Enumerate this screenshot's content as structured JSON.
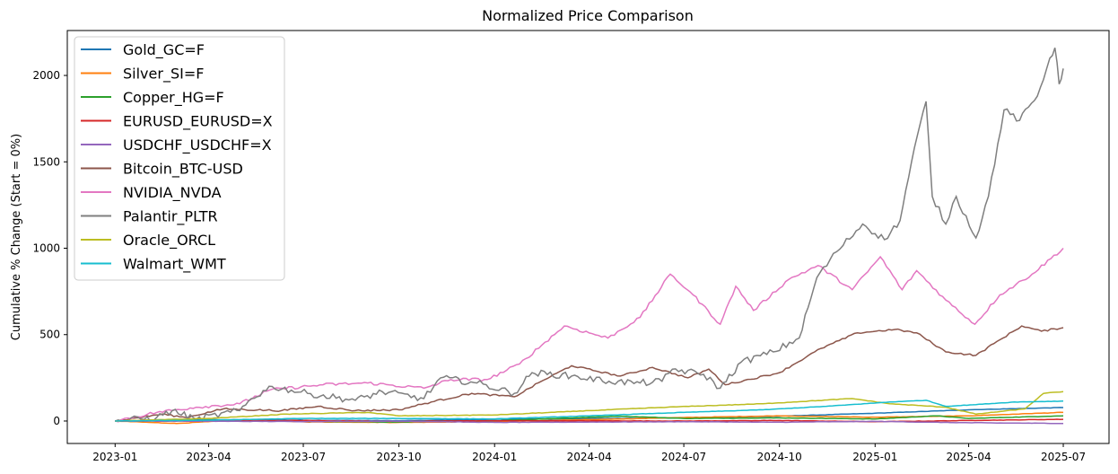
{
  "chart_data": {
    "type": "line",
    "title": "Normalized Price Comparison",
    "xlabel": "",
    "ylabel": "Cumulative % Change (Start = 0%)",
    "xlim": [
      "2022-11-16",
      "2025-08-14"
    ],
    "ylim": [
      -130,
      2260
    ],
    "x_ticks": [
      "2023-01",
      "2023-04",
      "2023-07",
      "2023-10",
      "2024-01",
      "2024-04",
      "2024-07",
      "2024-10",
      "2025-01",
      "2025-04",
      "2025-07"
    ],
    "y_ticks": [
      0,
      500,
      1000,
      1500,
      2000
    ],
    "grid": false,
    "legend_position": "upper-left",
    "series": [
      {
        "name": "Gold_GC=F",
        "color": "#1f77b4",
        "points": [
          [
            "2023-01-01",
            0
          ],
          [
            "2023-04-01",
            8
          ],
          [
            "2023-07-01",
            5
          ],
          [
            "2023-10-01",
            2
          ],
          [
            "2024-01-01",
            10
          ],
          [
            "2024-04-01",
            14
          ],
          [
            "2024-07-01",
            18
          ],
          [
            "2024-10-01",
            28
          ],
          [
            "2025-01-01",
            45
          ],
          [
            "2025-04-01",
            65
          ],
          [
            "2025-07-01",
            78
          ]
        ]
      },
      {
        "name": "Silver_SI=F",
        "color": "#ff7f0e",
        "points": [
          [
            "2023-01-01",
            0
          ],
          [
            "2023-03-01",
            -14
          ],
          [
            "2023-05-01",
            6
          ],
          [
            "2023-07-01",
            -5
          ],
          [
            "2023-10-01",
            -8
          ],
          [
            "2024-01-01",
            -3
          ],
          [
            "2024-04-01",
            8
          ],
          [
            "2024-07-01",
            20
          ],
          [
            "2024-10-01",
            30
          ],
          [
            "2025-01-01",
            22
          ],
          [
            "2025-04-01",
            30
          ],
          [
            "2025-07-01",
            50
          ]
        ]
      },
      {
        "name": "Copper_HG=F",
        "color": "#2ca02c",
        "points": [
          [
            "2023-01-01",
            0
          ],
          [
            "2023-04-01",
            5
          ],
          [
            "2023-07-01",
            -2
          ],
          [
            "2023-10-01",
            -6
          ],
          [
            "2024-01-01",
            2
          ],
          [
            "2024-05-01",
            28
          ],
          [
            "2024-07-01",
            15
          ],
          [
            "2024-10-01",
            18
          ],
          [
            "2025-01-01",
            12
          ],
          [
            "2025-03-01",
            30
          ],
          [
            "2025-04-01",
            15
          ],
          [
            "2025-07-01",
            30
          ]
        ]
      },
      {
        "name": "EURUSD_EURUSD=X",
        "color": "#d62728",
        "points": [
          [
            "2023-01-01",
            0
          ],
          [
            "2023-07-01",
            3
          ],
          [
            "2023-10-01",
            -2
          ],
          [
            "2024-01-01",
            2
          ],
          [
            "2024-07-01",
            0
          ],
          [
            "2024-10-01",
            3
          ],
          [
            "2025-01-01",
            -4
          ],
          [
            "2025-04-01",
            3
          ],
          [
            "2025-07-01",
            10
          ]
        ]
      },
      {
        "name": "USDCHF_USDCHF=X",
        "color": "#9467bd",
        "points": [
          [
            "2023-01-01",
            0
          ],
          [
            "2023-07-01",
            -3
          ],
          [
            "2023-10-01",
            -1
          ],
          [
            "2024-01-01",
            -8
          ],
          [
            "2024-07-01",
            -4
          ],
          [
            "2024-10-01",
            -7
          ],
          [
            "2025-01-01",
            -2
          ],
          [
            "2025-04-01",
            -10
          ],
          [
            "2025-07-01",
            -14
          ]
        ]
      },
      {
        "name": "Bitcoin_BTC-USD",
        "color": "#8c564b",
        "points": [
          [
            "2023-01-01",
            0
          ],
          [
            "2023-02-15",
            40
          ],
          [
            "2023-03-10",
            20
          ],
          [
            "2023-04-15",
            70
          ],
          [
            "2023-06-10",
            60
          ],
          [
            "2023-07-15",
            85
          ],
          [
            "2023-08-20",
            60
          ],
          [
            "2023-10-01",
            65
          ],
          [
            "2023-11-01",
            110
          ],
          [
            "2023-12-10",
            160
          ],
          [
            "2024-01-20",
            140
          ],
          [
            "2024-02-15",
            230
          ],
          [
            "2024-03-15",
            320
          ],
          [
            "2024-05-01",
            260
          ],
          [
            "2024-06-01",
            310
          ],
          [
            "2024-07-05",
            250
          ],
          [
            "2024-07-25",
            300
          ],
          [
            "2024-08-10",
            210
          ],
          [
            "2024-10-01",
            280
          ],
          [
            "2024-11-10",
            420
          ],
          [
            "2024-12-15",
            510
          ],
          [
            "2025-01-20",
            530
          ],
          [
            "2025-02-10",
            510
          ],
          [
            "2025-03-10",
            400
          ],
          [
            "2025-04-08",
            380
          ],
          [
            "2025-05-01",
            470
          ],
          [
            "2025-05-22",
            550
          ],
          [
            "2025-06-10",
            520
          ],
          [
            "2025-07-01",
            540
          ]
        ]
      },
      {
        "name": "NVIDIA_NVDA",
        "color": "#e377c2",
        "points": [
          [
            "2023-01-01",
            0
          ],
          [
            "2023-02-10",
            50
          ],
          [
            "2023-03-20",
            80
          ],
          [
            "2023-05-01",
            100
          ],
          [
            "2023-05-30",
            180
          ],
          [
            "2023-07-20",
            210
          ],
          [
            "2023-09-01",
            220
          ],
          [
            "2023-10-25",
            190
          ],
          [
            "2023-11-20",
            240
          ],
          [
            "2023-12-25",
            240
          ],
          [
            "2024-01-25",
            330
          ],
          [
            "2024-03-08",
            550
          ],
          [
            "2024-04-19",
            480
          ],
          [
            "2024-05-20",
            600
          ],
          [
            "2024-06-18",
            850
          ],
          [
            "2024-07-10",
            730
          ],
          [
            "2024-08-05",
            560
          ],
          [
            "2024-08-20",
            780
          ],
          [
            "2024-09-06",
            640
          ],
          [
            "2024-10-10",
            820
          ],
          [
            "2024-11-07",
            900
          ],
          [
            "2024-12-10",
            760
          ],
          [
            "2025-01-06",
            950
          ],
          [
            "2025-01-27",
            760
          ],
          [
            "2025-02-10",
            870
          ],
          [
            "2025-03-10",
            700
          ],
          [
            "2025-04-07",
            560
          ],
          [
            "2025-05-01",
            730
          ],
          [
            "2025-06-01",
            850
          ],
          [
            "2025-07-01",
            1000
          ]
        ]
      },
      {
        "name": "Palantir_PLTR",
        "color": "#7f7f7f",
        "points": [
          [
            "2023-01-01",
            0
          ],
          [
            "2023-02-10",
            20
          ],
          [
            "2023-02-25",
            60
          ],
          [
            "2023-03-20",
            10
          ],
          [
            "2023-05-01",
            60
          ],
          [
            "2023-05-12",
            130
          ],
          [
            "2023-06-01",
            200
          ],
          [
            "2023-07-05",
            160
          ],
          [
            "2023-08-20",
            120
          ],
          [
            "2023-09-15",
            170
          ],
          [
            "2023-10-25",
            130
          ],
          [
            "2023-11-10",
            250
          ],
          [
            "2023-12-15",
            220
          ],
          [
            "2024-01-20",
            160
          ],
          [
            "2024-02-06",
            280
          ],
          [
            "2024-03-15",
            260
          ],
          [
            "2024-04-20",
            230
          ],
          [
            "2024-05-20",
            220
          ],
          [
            "2024-06-10",
            230
          ],
          [
            "2024-06-20",
            300
          ],
          [
            "2024-07-20",
            270
          ],
          [
            "2024-08-05",
            190
          ],
          [
            "2024-08-25",
            340
          ],
          [
            "2024-09-25",
            400
          ],
          [
            "2024-10-20",
            480
          ],
          [
            "2024-11-06",
            830
          ],
          [
            "2024-11-25",
            980
          ],
          [
            "2024-12-20",
            1140
          ],
          [
            "2025-01-10",
            1050
          ],
          [
            "2025-01-25",
            1160
          ],
          [
            "2025-02-05",
            1500
          ],
          [
            "2025-02-19",
            1850
          ],
          [
            "2025-02-25",
            1300
          ],
          [
            "2025-03-10",
            1140
          ],
          [
            "2025-03-20",
            1300
          ],
          [
            "2025-04-08",
            1060
          ],
          [
            "2025-04-20",
            1300
          ],
          [
            "2025-05-05",
            1800
          ],
          [
            "2025-05-20",
            1740
          ],
          [
            "2025-06-06",
            1880
          ],
          [
            "2025-06-18",
            2100
          ],
          [
            "2025-06-23",
            2160
          ],
          [
            "2025-06-27",
            1950
          ],
          [
            "2025-07-01",
            2040
          ]
        ]
      },
      {
        "name": "Oracle_ORCL",
        "color": "#bcbd22",
        "points": [
          [
            "2023-01-01",
            0
          ],
          [
            "2023-04-01",
            15
          ],
          [
            "2023-06-15",
            40
          ],
          [
            "2023-09-01",
            50
          ],
          [
            "2023-10-01",
            30
          ],
          [
            "2024-01-01",
            35
          ],
          [
            "2024-04-01",
            60
          ],
          [
            "2024-06-15",
            80
          ],
          [
            "2024-09-15",
            100
          ],
          [
            "2024-12-10",
            130
          ],
          [
            "2025-01-15",
            100
          ],
          [
            "2025-03-10",
            80
          ],
          [
            "2025-04-08",
            40
          ],
          [
            "2025-05-25",
            70
          ],
          [
            "2025-06-12",
            160
          ],
          [
            "2025-07-01",
            170
          ]
        ]
      },
      {
        "name": "Walmart_WMT",
        "color": "#17becf",
        "points": [
          [
            "2023-01-01",
            0
          ],
          [
            "2023-04-01",
            5
          ],
          [
            "2023-07-01",
            15
          ],
          [
            "2023-10-01",
            15
          ],
          [
            "2024-01-01",
            12
          ],
          [
            "2024-04-01",
            30
          ],
          [
            "2024-07-01",
            50
          ],
          [
            "2024-09-15",
            65
          ],
          [
            "2024-11-15",
            85
          ],
          [
            "2025-01-15",
            110
          ],
          [
            "2025-02-19",
            120
          ],
          [
            "2025-03-10",
            85
          ],
          [
            "2025-04-08",
            95
          ],
          [
            "2025-05-15",
            110
          ],
          [
            "2025-07-01",
            115
          ]
        ]
      }
    ]
  }
}
